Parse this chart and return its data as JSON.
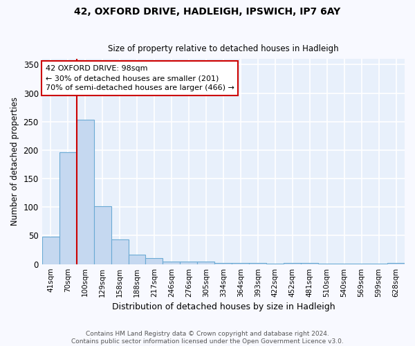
{
  "title1": "42, OXFORD DRIVE, HADLEIGH, IPSWICH, IP7 6AY",
  "title2": "Size of property relative to detached houses in Hadleigh",
  "xlabel": "Distribution of detached houses by size in Hadleigh",
  "ylabel": "Number of detached properties",
  "categories": [
    "41sqm",
    "70sqm",
    "100sqm",
    "129sqm",
    "158sqm",
    "188sqm",
    "217sqm",
    "246sqm",
    "276sqm",
    "305sqm",
    "334sqm",
    "364sqm",
    "393sqm",
    "422sqm",
    "452sqm",
    "481sqm",
    "510sqm",
    "540sqm",
    "569sqm",
    "599sqm",
    "628sqm"
  ],
  "values": [
    48,
    196,
    253,
    102,
    43,
    17,
    10,
    4,
    4,
    4,
    2,
    2,
    2,
    1,
    2,
    2,
    1,
    1,
    1,
    1,
    2
  ],
  "bar_color": "#c5d8f0",
  "bar_edge_color": "#6aaad4",
  "background_color": "#e8f0fb",
  "grid_color": "#ffffff",
  "red_line_index": 2,
  "annotation_text": "42 OXFORD DRIVE: 98sqm\n← 30% of detached houses are smaller (201)\n70% of semi-detached houses are larger (466) →",
  "annotation_box_color": "#ffffff",
  "annotation_box_edge": "#cc0000",
  "red_line_color": "#cc0000",
  "footer": "Contains HM Land Registry data © Crown copyright and database right 2024.\nContains public sector information licensed under the Open Government Licence v3.0.",
  "ylim": [
    0,
    360
  ],
  "yticks": [
    0,
    50,
    100,
    150,
    200,
    250,
    300,
    350
  ],
  "fig_bg": "#f8f9ff"
}
